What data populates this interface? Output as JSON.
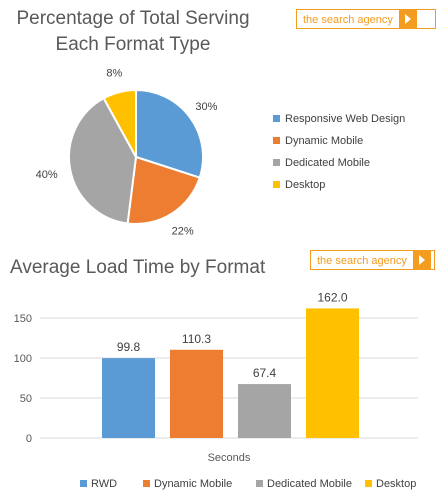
{
  "pie": {
    "title_line1": "Percentage of Total Serving",
    "title_line2": "Each Format Type",
    "logo_text": "the search agency"
  },
  "bar": {
    "title": "Average Load Time by Format",
    "logo_text": "the search agency"
  },
  "chart_data": [
    {
      "type": "pie",
      "title": "Percentage of Total Serving Each Format Type",
      "categories": [
        "Responsive Web Design",
        "Dynamic Mobile",
        "Dedicated Mobile",
        "Desktop"
      ],
      "values": [
        30,
        22,
        40,
        8
      ],
      "value_labels": [
        "30%",
        "22%",
        "40%",
        "8%"
      ],
      "colors": [
        "#5b9bd5",
        "#ed7d31",
        "#a5a5a5",
        "#ffc000"
      ],
      "legend_position": "right"
    },
    {
      "type": "bar",
      "title": "Average Load Time by Format",
      "xlabel": "Seconds",
      "ylabel": "",
      "ylim": [
        0,
        175
      ],
      "yticks": [
        0,
        50,
        100,
        150
      ],
      "grid": true,
      "legend_position": "bottom",
      "series": [
        {
          "name": "RWD",
          "values": [
            99.8
          ],
          "color": "#5b9bd5"
        },
        {
          "name": "Dynamic Mobile",
          "values": [
            110.3
          ],
          "color": "#ed7d31"
        },
        {
          "name": "Dedicated Mobile",
          "values": [
            67.4
          ],
          "color": "#a5a5a5"
        },
        {
          "name": "Desktop",
          "values": [
            162.0
          ],
          "color": "#ffc000"
        }
      ],
      "data_labels": [
        "99.8",
        "110.3",
        "67.4",
        "162.0"
      ]
    }
  ]
}
